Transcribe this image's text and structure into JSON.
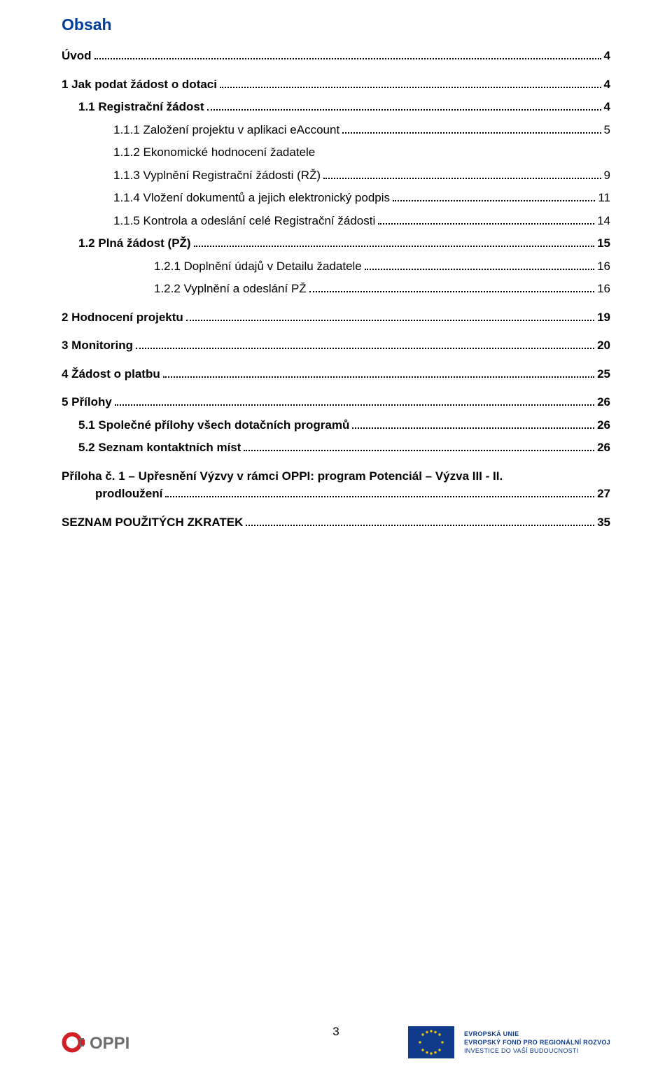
{
  "colors": {
    "title": "#003e9b",
    "text": "#000000",
    "background": "#ffffff",
    "dot": "#000000",
    "oppi_red": "#d21f26",
    "oppi_gray": "#6d6e70",
    "eu_blue": "#103a8a",
    "eu_gold": "#f2c500"
  },
  "typography": {
    "body_fontsize_pt": 13,
    "title_fontsize_pt": 17,
    "eu_text_fontsize_pt": 7
  },
  "title": "Obsah",
  "page_number": "3",
  "toc": [
    {
      "label": "Úvod",
      "page": "4",
      "indent": 0,
      "bold": true
    },
    {
      "label": "1     Jak podat žádost o dotaci",
      "page": "4",
      "indent": 0,
      "bold": true,
      "gap_before": true
    },
    {
      "label": "1.1    Registrační žádost",
      "page": "4",
      "indent": 1,
      "bold": true
    },
    {
      "label": "1.1.1    Založení projektu v aplikaci eAccount",
      "page": "5",
      "indent": 2,
      "bold": false
    },
    {
      "label": "1.1.2    Ekonomické hodnocení žadatele",
      "page": "",
      "indent": 2,
      "bold": false,
      "no_page": true
    },
    {
      "label": "1.1.3    Vyplnění Registrační žádosti (RŽ)",
      "page": "9",
      "indent": 2,
      "bold": false
    },
    {
      "label": "1.1.4    Vložení dokumentů a jejich elektronický podpis",
      "page": "11",
      "indent": 2,
      "bold": false
    },
    {
      "label": "1.1.5    Kontrola a odeslání celé Registrační žádosti",
      "page": "14",
      "indent": 2,
      "bold": false
    },
    {
      "label": "1.2    Plná žádost (PŽ)",
      "page": "15",
      "indent": 1,
      "bold": true
    },
    {
      "label": "1.2.1    Doplnění údajů v Detailu žadatele",
      "page": "16",
      "indent": 3,
      "bold": false
    },
    {
      "label": "1.2.2    Vyplnění a odeslání PŽ",
      "page": "16",
      "indent": 3,
      "bold": false
    },
    {
      "label": "2     Hodnocení projektu",
      "page": "19",
      "indent": 0,
      "bold": true,
      "gap_before": true
    },
    {
      "label": "3     Monitoring",
      "page": "20",
      "indent": 0,
      "bold": true,
      "gap_before": true
    },
    {
      "label": "4     Žádost o platbu",
      "page": "25",
      "indent": 0,
      "bold": true,
      "gap_before": true
    },
    {
      "label": "5     Přílohy",
      "page": "26",
      "indent": 0,
      "bold": true,
      "gap_before": true
    },
    {
      "label": "5.1    Společné přílohy všech dotačních programů",
      "page": "26",
      "indent": 1,
      "bold": true
    },
    {
      "label": "5.2    Seznam kontaktních míst",
      "page": "26",
      "indent": 1,
      "bold": true
    },
    {
      "label": "Příloha č. 1 – Upřesnění Výzvy v rámci OPPI: program Potenciál – Výzva III - II. prodloužení",
      "page": "27",
      "indent": 0,
      "bold": true,
      "wrap": true,
      "gap_before": true
    },
    {
      "label": "SEZNAM POUŽITÝCH ZKRATEK",
      "page": "35",
      "indent": 0,
      "bold": true,
      "gap_before": true
    }
  ],
  "footer": {
    "oppi_text": "OPPI",
    "eu_line1": "EVROPSKÁ UNIE",
    "eu_line2": "EVROPSKÝ FOND PRO REGIONÁLNÍ ROZVOJ",
    "eu_line3": "INVESTICE DO VAŠÍ BUDOUCNOSTI"
  }
}
